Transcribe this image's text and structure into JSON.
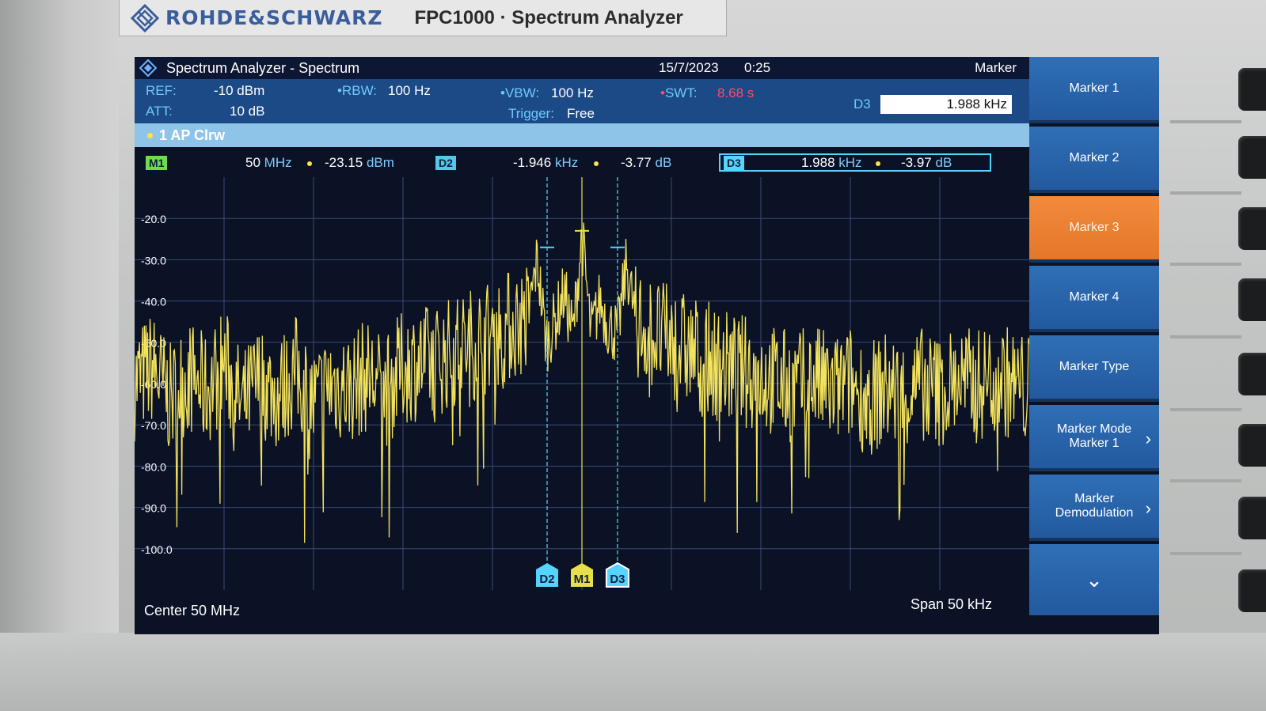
{
  "device": {
    "brand": "ROHDE&SCHWARZ",
    "model": "FPC1000 · Spectrum Analyzer"
  },
  "screen": {
    "title": "Spectrum Analyzer - Spectrum",
    "date": "15/7/2023",
    "time": "0:25",
    "settings": {
      "ref_label": "REF:",
      "ref_value": "-10 dBm",
      "att_label": "ATT:",
      "att_value": "10 dB",
      "rbw_label": "RBW:",
      "rbw_value": "100 Hz",
      "vbw_label": "VBW:",
      "vbw_value": "100 Hz",
      "trigger_label": "Trigger:",
      "trigger_value": "Free",
      "swt_label": "SWT:",
      "swt_value": "8.68 s"
    },
    "marker_edit": {
      "title": "Marker",
      "label": "D3",
      "value": "1.988 kHz"
    },
    "trace": {
      "label": "1 AP Clrw"
    },
    "markers": [
      {
        "id": "M1",
        "freq_num": "50",
        "freq_unit": "MHz",
        "level_num": "-23.15",
        "level_unit": "dBm"
      },
      {
        "id": "D2",
        "freq_num": "-1.946",
        "freq_unit": "kHz",
        "level_num": "-3.77",
        "level_unit": "dB"
      },
      {
        "id": "D3",
        "freq_num": "1.988",
        "freq_unit": "kHz",
        "level_num": "-3.97",
        "level_unit": "dB"
      }
    ],
    "footer": {
      "center": "Center 50 MHz",
      "span": "Span 50 kHz"
    },
    "softkeys": [
      {
        "line1": "Marker 1",
        "line2": "",
        "active": false,
        "chevron": false
      },
      {
        "line1": "Marker 2",
        "line2": "",
        "active": false,
        "chevron": false
      },
      {
        "line1": "Marker 3",
        "line2": "",
        "active": true,
        "chevron": false
      },
      {
        "line1": "Marker 4",
        "line2": "",
        "active": false,
        "chevron": false
      },
      {
        "line1": "Marker Type",
        "line2": "",
        "active": false,
        "chevron": false
      },
      {
        "line1": "Marker Mode",
        "line2": "Marker 1",
        "active": false,
        "chevron": true
      },
      {
        "line1": "Marker",
        "line2": "Demodulation",
        "active": false,
        "chevron": true
      }
    ],
    "chevron_glyph": "›",
    "more_glyph": "⌄"
  },
  "chart_data": {
    "type": "line",
    "ylim": [
      -110,
      -10
    ],
    "xlim": [
      -25,
      25
    ],
    "x_unit": "kHz offset from center",
    "y_unit": "dBm",
    "yticks": [
      "-20.0",
      "-30.0",
      "-40.0",
      "-50.0",
      "-60.0",
      "-70.0",
      "-80.0",
      "-90.0",
      "-100.0"
    ],
    "ytick_values": [
      -20,
      -30,
      -40,
      -50,
      -60,
      -70,
      -80,
      -90,
      -100
    ],
    "grid": true,
    "trace_color": "#f2e25c",
    "series": [
      {
        "x": [
          -25,
          -24,
          -23,
          -22,
          -21,
          -20,
          -19,
          -18,
          -17,
          -16,
          -15,
          -14,
          -13,
          -12,
          -11,
          -10,
          -9,
          -8,
          -7,
          -6,
          -5,
          -4,
          -3,
          -2.5,
          -2,
          -1.5,
          -1,
          -0.5,
          0,
          0.5,
          1,
          1.5,
          2,
          2.5,
          3,
          4,
          5,
          6,
          7,
          8,
          9,
          10,
          11,
          12,
          13,
          14,
          15,
          16,
          17,
          18,
          19,
          20,
          21,
          22,
          23,
          24,
          25
        ],
        "y": [
          -60,
          -56,
          -64,
          -58,
          -62,
          -55,
          -66,
          -59,
          -63,
          -57,
          -65,
          -60,
          -61,
          -58,
          -62,
          -56,
          -55,
          -54,
          -52,
          -50,
          -48,
          -46,
          -44,
          -30,
          -50,
          -45,
          -38,
          -48,
          -24,
          -48,
          -40,
          -46,
          -48,
          -31,
          -45,
          -48,
          -50,
          -52,
          -54,
          -56,
          -57,
          -58,
          -60,
          -61,
          -59,
          -62,
          -60,
          -64,
          -61,
          -63,
          -60,
          -62,
          -59,
          -61,
          -58,
          -60,
          -62
        ]
      }
    ],
    "markers": [
      {
        "id": "D2",
        "x": -1.946,
        "y": -27
      },
      {
        "id": "M1",
        "x": 0,
        "y": -23
      },
      {
        "id": "D3",
        "x": 1.988,
        "y": -27
      }
    ]
  }
}
